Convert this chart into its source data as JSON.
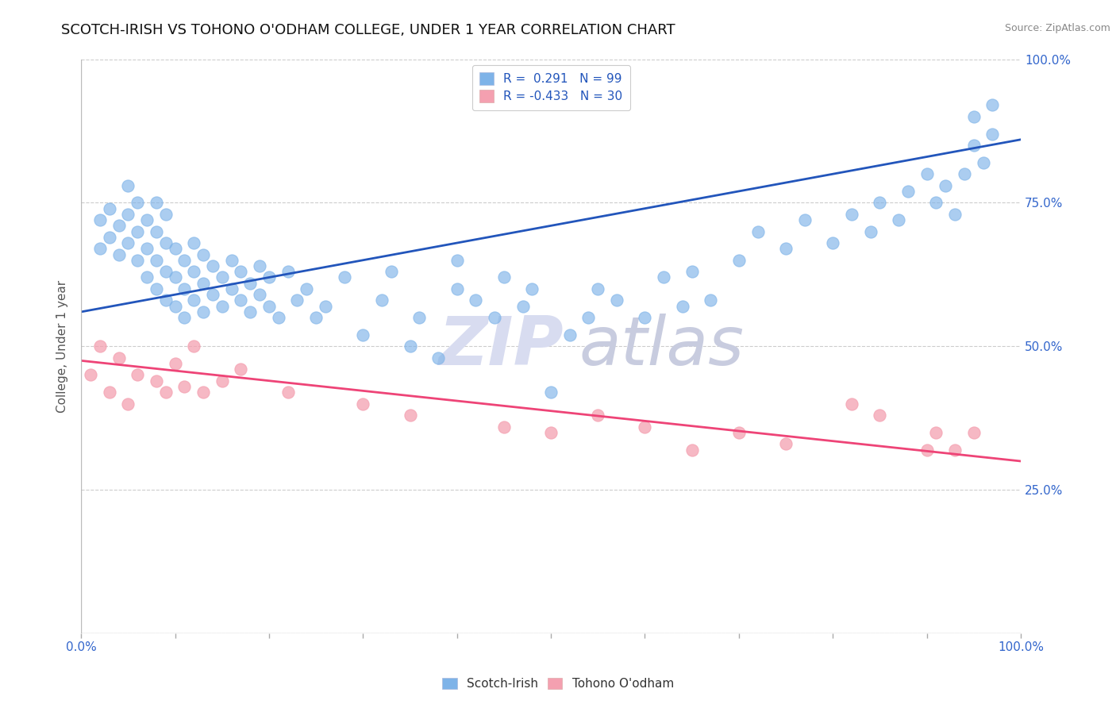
{
  "title": "SCOTCH-IRISH VS TOHONO O'ODHAM COLLEGE, UNDER 1 YEAR CORRELATION CHART",
  "source": "Source: ZipAtlas.com",
  "ylabel": "College, Under 1 year",
  "xlim": [
    0.0,
    1.0
  ],
  "ylim": [
    0.0,
    1.0
  ],
  "scotch_irish_R": 0.291,
  "scotch_irish_N": 99,
  "tohono_R": -0.433,
  "tohono_N": 30,
  "scotch_irish_color": "#7EB3E8",
  "tohono_color": "#F4A0B0",
  "scotch_irish_line_color": "#2255BB",
  "tohono_line_color": "#EE4477",
  "watermark_zip_color": "#D8DCF0",
  "watermark_atlas_color": "#C8CCDF",
  "grid_color": "#CCCCCC",
  "background_color": "#FFFFFF",
  "title_fontsize": 13,
  "legend_fontsize": 11,
  "legend_R_color": "#2255BB",
  "legend_text_color": "#333333",
  "tick_color": "#3366CC",
  "scotch_irish_x": [
    0.02,
    0.02,
    0.03,
    0.03,
    0.04,
    0.04,
    0.05,
    0.05,
    0.05,
    0.06,
    0.06,
    0.06,
    0.07,
    0.07,
    0.07,
    0.08,
    0.08,
    0.08,
    0.08,
    0.09,
    0.09,
    0.09,
    0.09,
    0.1,
    0.1,
    0.1,
    0.11,
    0.11,
    0.11,
    0.12,
    0.12,
    0.12,
    0.13,
    0.13,
    0.13,
    0.14,
    0.14,
    0.15,
    0.15,
    0.16,
    0.16,
    0.17,
    0.17,
    0.18,
    0.18,
    0.19,
    0.19,
    0.2,
    0.2,
    0.21,
    0.22,
    0.23,
    0.24,
    0.25,
    0.26,
    0.28,
    0.3,
    0.32,
    0.33,
    0.35,
    0.36,
    0.38,
    0.4,
    0.4,
    0.42,
    0.44,
    0.45,
    0.47,
    0.48,
    0.5,
    0.52,
    0.54,
    0.55,
    0.57,
    0.6,
    0.62,
    0.64,
    0.65,
    0.67,
    0.7,
    0.72,
    0.75,
    0.77,
    0.8,
    0.82,
    0.84,
    0.85,
    0.87,
    0.88,
    0.9,
    0.91,
    0.92,
    0.93,
    0.94,
    0.95,
    0.95,
    0.96,
    0.97,
    0.97
  ],
  "scotch_irish_y": [
    0.67,
    0.72,
    0.69,
    0.74,
    0.66,
    0.71,
    0.68,
    0.73,
    0.78,
    0.65,
    0.7,
    0.75,
    0.62,
    0.67,
    0.72,
    0.6,
    0.65,
    0.7,
    0.75,
    0.58,
    0.63,
    0.68,
    0.73,
    0.57,
    0.62,
    0.67,
    0.55,
    0.6,
    0.65,
    0.58,
    0.63,
    0.68,
    0.56,
    0.61,
    0.66,
    0.59,
    0.64,
    0.57,
    0.62,
    0.6,
    0.65,
    0.58,
    0.63,
    0.56,
    0.61,
    0.59,
    0.64,
    0.57,
    0.62,
    0.55,
    0.63,
    0.58,
    0.6,
    0.55,
    0.57,
    0.62,
    0.52,
    0.58,
    0.63,
    0.5,
    0.55,
    0.48,
    0.6,
    0.65,
    0.58,
    0.55,
    0.62,
    0.57,
    0.6,
    0.42,
    0.52,
    0.55,
    0.6,
    0.58,
    0.55,
    0.62,
    0.57,
    0.63,
    0.58,
    0.65,
    0.7,
    0.67,
    0.72,
    0.68,
    0.73,
    0.7,
    0.75,
    0.72,
    0.77,
    0.8,
    0.75,
    0.78,
    0.73,
    0.8,
    0.85,
    0.9,
    0.82,
    0.87,
    0.92
  ],
  "tohono_x": [
    0.01,
    0.02,
    0.03,
    0.04,
    0.05,
    0.06,
    0.08,
    0.09,
    0.1,
    0.11,
    0.12,
    0.13,
    0.15,
    0.17,
    0.22,
    0.3,
    0.35,
    0.45,
    0.5,
    0.55,
    0.6,
    0.65,
    0.7,
    0.75,
    0.82,
    0.85,
    0.9,
    0.91,
    0.93,
    0.95
  ],
  "tohono_y": [
    0.45,
    0.5,
    0.42,
    0.48,
    0.4,
    0.45,
    0.44,
    0.42,
    0.47,
    0.43,
    0.5,
    0.42,
    0.44,
    0.46,
    0.42,
    0.4,
    0.38,
    0.36,
    0.35,
    0.38,
    0.36,
    0.32,
    0.35,
    0.33,
    0.4,
    0.38,
    0.32,
    0.35,
    0.32,
    0.35
  ],
  "blue_line_x0": 0.0,
  "blue_line_y0": 0.56,
  "blue_line_x1": 1.0,
  "blue_line_y1": 0.86,
  "pink_line_x0": 0.0,
  "pink_line_y0": 0.475,
  "pink_line_x1": 1.0,
  "pink_line_y1": 0.3
}
